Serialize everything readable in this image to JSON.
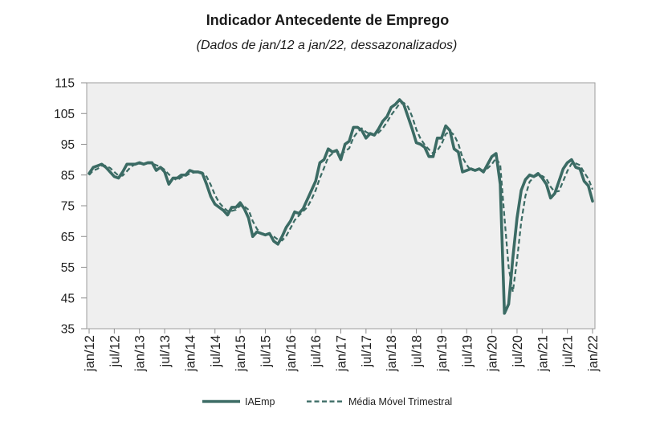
{
  "chart_data": {
    "type": "line",
    "title": "Indicador Antecedente de Emprego",
    "subtitle": "(Dados de jan/12 a jan/22, dessazonalizados)",
    "ylim": [
      35,
      115
    ],
    "y_ticks": [
      35,
      45,
      55,
      65,
      75,
      85,
      95,
      105,
      115
    ],
    "x_ticks": [
      "jan/12",
      "jul/12",
      "jan/13",
      "jul/13",
      "jan/14",
      "jul/14",
      "jan/15",
      "jul/15",
      "jan/16",
      "jul/16",
      "jan/17",
      "jul/17",
      "jan/18",
      "jul/18",
      "jan/19",
      "jul/19",
      "jan/20",
      "jul/20",
      "jan/21",
      "jul/21",
      "jan/22"
    ],
    "grid": false,
    "legend": "bottom",
    "x": [
      "jan/12",
      "fev/12",
      "mar/12",
      "abr/12",
      "mai/12",
      "jun/12",
      "jul/12",
      "ago/12",
      "set/12",
      "out/12",
      "nov/12",
      "dez/12",
      "jan/13",
      "fev/13",
      "mar/13",
      "abr/13",
      "mai/13",
      "jun/13",
      "jul/13",
      "ago/13",
      "set/13",
      "out/13",
      "nov/13",
      "dez/13",
      "jan/14",
      "fev/14",
      "mar/14",
      "abr/14",
      "mai/14",
      "jun/14",
      "jul/14",
      "ago/14",
      "set/14",
      "out/14",
      "nov/14",
      "dez/14",
      "jan/15",
      "fev/15",
      "mar/15",
      "abr/15",
      "mai/15",
      "jun/15",
      "jul/15",
      "ago/15",
      "set/15",
      "out/15",
      "nov/15",
      "dez/15",
      "jan/16",
      "fev/16",
      "mar/16",
      "abr/16",
      "mai/16",
      "jun/16",
      "jul/16",
      "ago/16",
      "set/16",
      "out/16",
      "nov/16",
      "dez/16",
      "jan/17",
      "fev/17",
      "mar/17",
      "abr/17",
      "mai/17",
      "jun/17",
      "jul/17",
      "ago/17",
      "set/17",
      "out/17",
      "nov/17",
      "dez/17",
      "jan/18",
      "fev/18",
      "mar/18",
      "abr/18",
      "mai/18",
      "jun/18",
      "jul/18",
      "ago/18",
      "set/18",
      "out/18",
      "nov/18",
      "dez/18",
      "jan/19",
      "fev/19",
      "mar/19",
      "abr/19",
      "mai/19",
      "jun/19",
      "jul/19",
      "ago/19",
      "set/19",
      "out/19",
      "nov/19",
      "dez/19",
      "jan/20",
      "fev/20",
      "mar/20",
      "abr/20",
      "mai/20",
      "jun/20",
      "jul/20",
      "ago/20",
      "set/20",
      "out/20",
      "nov/20",
      "dez/20",
      "jan/21",
      "fev/21",
      "mar/21",
      "abr/21",
      "mai/21",
      "jun/21",
      "jul/21",
      "ago/21",
      "set/21",
      "out/21",
      "nov/21",
      "dez/21",
      "jan/22"
    ],
    "series": [
      {
        "name": "IAEmp",
        "color": "#3b6b64",
        "dashed": false,
        "values": [
          85.5,
          87.5,
          88,
          88.5,
          87.5,
          86,
          84.5,
          84,
          86,
          88.5,
          88.5,
          88.5,
          89,
          88.5,
          89,
          89,
          86.5,
          87.5,
          86,
          82,
          84,
          84,
          85,
          85,
          86.5,
          86,
          86,
          85.5,
          82,
          78,
          75.5,
          74.5,
          73.5,
          72,
          74.5,
          74.5,
          76,
          74,
          71,
          65,
          66.5,
          66,
          65.5,
          66,
          63.5,
          62.5,
          65,
          68,
          70,
          73,
          72.5,
          74,
          77,
          80,
          83,
          89,
          90,
          93.5,
          92.5,
          93,
          90,
          95,
          96,
          100.5,
          100.5,
          99.5,
          97,
          98.5,
          98,
          100,
          102.5,
          104,
          107,
          108,
          109.5,
          108,
          104,
          100,
          95.5,
          95,
          94,
          91,
          91,
          97,
          97,
          101,
          99.5,
          93.5,
          92.5,
          86,
          86.5,
          87,
          86.5,
          87,
          86,
          88.5,
          91,
          92,
          82,
          40,
          43,
          58,
          71,
          80,
          83.5,
          85,
          84.5,
          85.5,
          84,
          82,
          77.5,
          79,
          83,
          87,
          89,
          90,
          87.5,
          87,
          83,
          81.5,
          76.5
        ]
      },
      {
        "name": "Média Móvel Trimestral",
        "color": "#3b6b64",
        "dashed": true,
        "values": [
          85,
          86.5,
          87,
          88,
          88,
          87.3,
          86,
          84.8,
          84.8,
          86.2,
          87.7,
          88.5,
          88.7,
          88.7,
          88.8,
          88.8,
          88.2,
          87.7,
          86.7,
          85.2,
          84,
          83.3,
          84.3,
          84.7,
          85.5,
          85.8,
          86.2,
          85.8,
          84.5,
          81.8,
          78.5,
          76,
          74.5,
          73.3,
          73.3,
          73.7,
          75,
          74.8,
          73.7,
          70,
          67.5,
          65.8,
          66,
          65.8,
          65,
          64,
          63.7,
          65.2,
          67.7,
          70.3,
          71.8,
          73.2,
          74.5,
          77,
          80,
          84,
          87.3,
          90.8,
          92,
          93,
          91.8,
          92.7,
          93.7,
          97.2,
          99,
          100.2,
          99,
          98.3,
          97.8,
          98.8,
          100.2,
          102.2,
          104.5,
          106.3,
          108.2,
          108.5,
          107.2,
          104,
          99.8,
          96.8,
          94.8,
          93.3,
          92,
          93,
          95,
          98.3,
          99.2,
          98,
          95.2,
          90.7,
          88.3,
          86.5,
          86.7,
          86.8,
          86.5,
          87.2,
          88.5,
          90.5,
          88.3,
          71.3,
          55,
          47,
          57.3,
          69.7,
          78.2,
          82.8,
          84.3,
          85,
          84.7,
          83.8,
          81.2,
          79.5,
          79.8,
          83,
          86.3,
          88.7,
          88.8,
          88.2,
          85.8,
          83.8,
          80.3
        ]
      }
    ]
  },
  "colors": {
    "plot_background": "#efefef",
    "plot_border": "#9d9d9d",
    "axis_tick": "#8c8c8c"
  }
}
